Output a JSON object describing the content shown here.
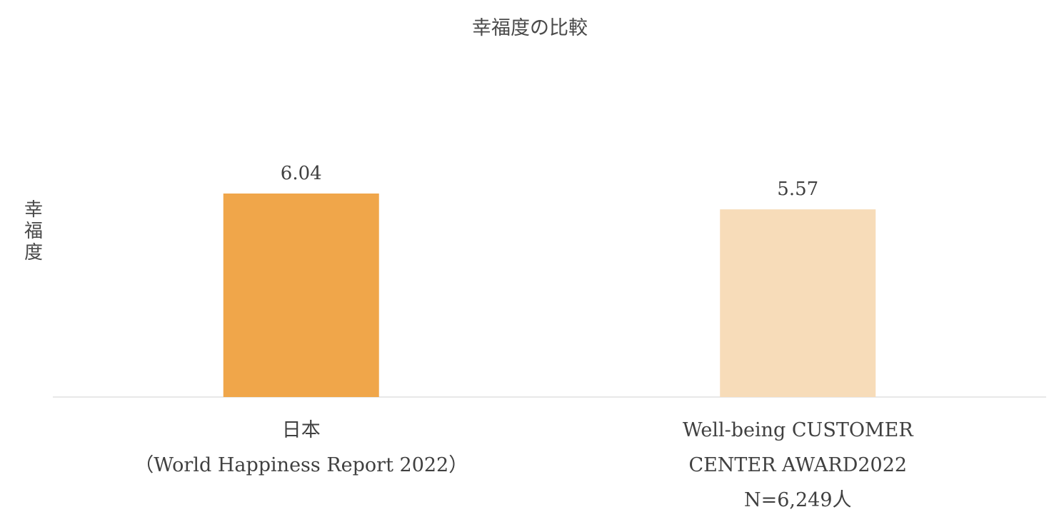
{
  "chart_data": {
    "type": "bar",
    "title": "幸福度の比較",
    "ylabel": "幸福度",
    "xlabel": "",
    "categories": [
      "日本（World Happiness Report 2022）",
      "Well-being CUSTOMER CENTER AWARD2022 N=6,249人"
    ],
    "category_lines": [
      [
        "日本",
        "（World Happiness Report 2022）"
      ],
      [
        "Well-being CUSTOMER",
        "CENTER AWARD2022",
        "N=6,249人"
      ]
    ],
    "values": [
      6.04,
      5.57
    ],
    "data_labels": [
      "6.04",
      "5.57"
    ],
    "bar_colors": [
      "#F0A64A",
      "#F7DCB9"
    ],
    "ylim": [
      0,
      6.04
    ],
    "grid": false,
    "legend": "none"
  }
}
